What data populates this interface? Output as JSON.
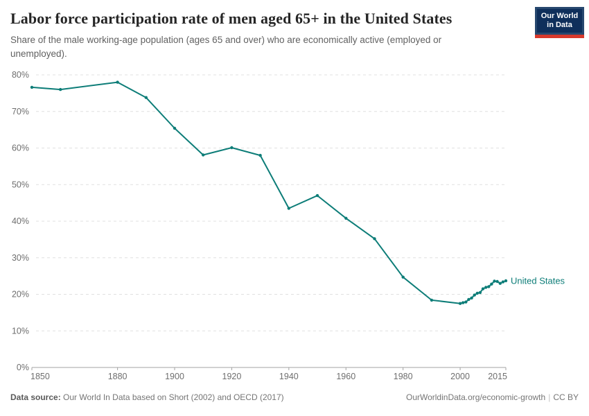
{
  "header": {
    "title": "Labor force participation rate of men aged 65+ in the United States",
    "subtitle": "Share of the male working-age population (ages 65 and over) who are economically active (employed or unemployed).",
    "logo": {
      "line1": "Our World",
      "line2": "in Data"
    }
  },
  "footer": {
    "source_label": "Data source:",
    "source_text": " Our World In Data based on Short (2002) and OECD (2017)",
    "link": "OurWorldinData.org/economic-growth",
    "separator": "|",
    "license": "CC BY"
  },
  "colors": {
    "series": "#0d7d78",
    "grid": "#e0e0e0",
    "axis": "#a3a3a3",
    "tick_label": "#6e6e6e",
    "logo_navy": "#0f2f5b",
    "logo_red": "#d8392c"
  },
  "chart_data": {
    "type": "line",
    "title": "Labor force participation rate of men aged 65+ in the United States",
    "xlabel": "",
    "ylabel": "",
    "xlim": [
      1850,
      2016
    ],
    "ylim": [
      0,
      80
    ],
    "xticks": [
      1850,
      1880,
      1900,
      1920,
      1940,
      1960,
      1980,
      2000,
      2015
    ],
    "yticks": [
      0,
      10,
      20,
      30,
      40,
      50,
      60,
      70,
      80
    ],
    "ytick_suffix": "%",
    "grid": "horizontal-dashed",
    "legend_position": "end-of-line-label",
    "series": [
      {
        "name": "United States",
        "color": "#0d7d78",
        "points": [
          [
            1850,
            76.6
          ],
          [
            1860,
            76.0
          ],
          [
            1880,
            78.0
          ],
          [
            1890,
            73.8
          ],
          [
            1900,
            65.4
          ],
          [
            1910,
            58.1
          ],
          [
            1920,
            60.1
          ],
          [
            1930,
            58.0
          ],
          [
            1940,
            43.5
          ],
          [
            1950,
            47.0
          ],
          [
            1960,
            40.8
          ],
          [
            1970,
            35.2
          ],
          [
            1980,
            24.7
          ],
          [
            1990,
            18.4
          ],
          [
            2000,
            17.5
          ],
          [
            2001,
            17.7
          ],
          [
            2002,
            17.9
          ],
          [
            2003,
            18.6
          ],
          [
            2004,
            19.0
          ],
          [
            2005,
            19.8
          ],
          [
            2006,
            20.3
          ],
          [
            2007,
            20.5
          ],
          [
            2008,
            21.5
          ],
          [
            2009,
            21.9
          ],
          [
            2010,
            22.1
          ],
          [
            2011,
            22.8
          ],
          [
            2012,
            23.6
          ],
          [
            2013,
            23.5
          ],
          [
            2014,
            23.0
          ],
          [
            2015,
            23.4
          ],
          [
            2016,
            23.7
          ]
        ]
      }
    ]
  }
}
